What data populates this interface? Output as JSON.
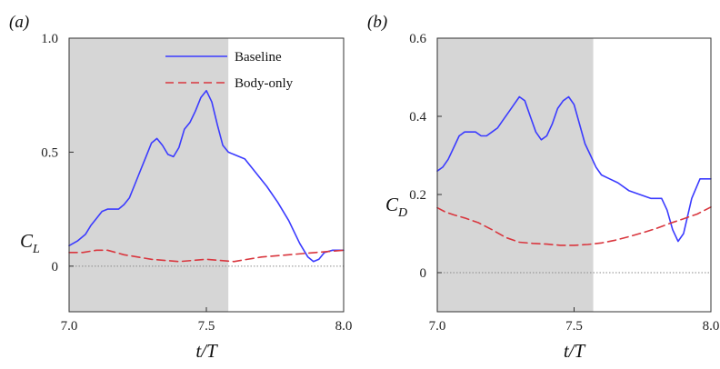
{
  "chart_data": [
    {
      "type": "line",
      "panel_label": "(a)",
      "ylabel_main": "C",
      "ylabel_sub": "L",
      "xlabel": "t/T",
      "xlim": [
        7.0,
        8.0
      ],
      "ylim": [
        -0.2,
        1.0
      ],
      "xticks": [
        "7.0",
        "7.5",
        "8.0"
      ],
      "yticks": [
        "0",
        "0.5",
        "1.0"
      ],
      "shaded_x": [
        7.0,
        7.58
      ],
      "shade_color": "#d6d6d6",
      "zero_line": true,
      "legend": {
        "placement": "top-right"
      },
      "series": [
        {
          "name": "Baseline",
          "color": "#3b3bff",
          "style": "solid",
          "x": [
            7.0,
            7.03,
            7.06,
            7.08,
            7.1,
            7.12,
            7.14,
            7.16,
            7.18,
            7.2,
            7.22,
            7.24,
            7.26,
            7.28,
            7.3,
            7.32,
            7.34,
            7.36,
            7.38,
            7.4,
            7.42,
            7.44,
            7.46,
            7.48,
            7.5,
            7.52,
            7.54,
            7.56,
            7.58,
            7.6,
            7.64,
            7.68,
            7.72,
            7.76,
            7.8,
            7.84,
            7.87,
            7.89,
            7.91,
            7.93,
            7.96,
            8.0
          ],
          "y": [
            0.09,
            0.11,
            0.14,
            0.18,
            0.21,
            0.24,
            0.25,
            0.25,
            0.25,
            0.27,
            0.3,
            0.36,
            0.42,
            0.48,
            0.54,
            0.56,
            0.53,
            0.49,
            0.48,
            0.52,
            0.6,
            0.63,
            0.68,
            0.74,
            0.77,
            0.72,
            0.62,
            0.53,
            0.5,
            0.49,
            0.47,
            0.41,
            0.35,
            0.28,
            0.2,
            0.1,
            0.04,
            0.02,
            0.03,
            0.06,
            0.07,
            0.07
          ]
        },
        {
          "name": "Body-only",
          "color": "#d9363e",
          "style": "dashed",
          "x": [
            7.0,
            7.05,
            7.1,
            7.14,
            7.2,
            7.3,
            7.4,
            7.5,
            7.6,
            7.7,
            7.8,
            7.9,
            8.0
          ],
          "y": [
            0.06,
            0.06,
            0.07,
            0.07,
            0.05,
            0.03,
            0.02,
            0.03,
            0.02,
            0.04,
            0.05,
            0.06,
            0.07
          ]
        }
      ]
    },
    {
      "type": "line",
      "panel_label": "(b)",
      "ylabel_main": "C",
      "ylabel_sub": "D",
      "xlabel": "t/T",
      "xlim": [
        7.0,
        8.0
      ],
      "ylim": [
        -0.1,
        0.6
      ],
      "xticks": [
        "7.0",
        "7.5",
        "8.0"
      ],
      "yticks": [
        "0",
        "0.2",
        "0.4",
        "0.6"
      ],
      "shaded_x": [
        7.0,
        7.57
      ],
      "shade_color": "#d6d6d6",
      "zero_line": true,
      "series": [
        {
          "name": "Baseline",
          "color": "#3b3bff",
          "style": "solid",
          "x": [
            7.0,
            7.02,
            7.04,
            7.06,
            7.08,
            7.1,
            7.12,
            7.14,
            7.16,
            7.18,
            7.2,
            7.22,
            7.24,
            7.26,
            7.28,
            7.3,
            7.32,
            7.34,
            7.36,
            7.38,
            7.4,
            7.42,
            7.44,
            7.46,
            7.48,
            7.5,
            7.52,
            7.54,
            7.56,
            7.58,
            7.6,
            7.63,
            7.66,
            7.7,
            7.74,
            7.78,
            7.8,
            7.82,
            7.84,
            7.86,
            7.88,
            7.9,
            7.93,
            7.96,
            8.0
          ],
          "y": [
            0.26,
            0.27,
            0.29,
            0.32,
            0.35,
            0.36,
            0.36,
            0.36,
            0.35,
            0.35,
            0.36,
            0.37,
            0.39,
            0.41,
            0.43,
            0.45,
            0.44,
            0.4,
            0.36,
            0.34,
            0.35,
            0.38,
            0.42,
            0.44,
            0.45,
            0.43,
            0.38,
            0.33,
            0.3,
            0.27,
            0.25,
            0.24,
            0.23,
            0.21,
            0.2,
            0.19,
            0.19,
            0.19,
            0.16,
            0.11,
            0.08,
            0.1,
            0.19,
            0.24,
            0.24
          ]
        },
        {
          "name": "Body-only",
          "color": "#d9363e",
          "style": "dashed",
          "x": [
            7.0,
            7.03,
            7.06,
            7.1,
            7.15,
            7.2,
            7.25,
            7.3,
            7.35,
            7.4,
            7.45,
            7.5,
            7.55,
            7.6,
            7.65,
            7.7,
            7.75,
            7.8,
            7.85,
            7.9,
            7.95,
            8.0
          ],
          "y": [
            0.166,
            0.155,
            0.148,
            0.14,
            0.128,
            0.11,
            0.09,
            0.078,
            0.075,
            0.073,
            0.07,
            0.07,
            0.072,
            0.076,
            0.083,
            0.092,
            0.102,
            0.113,
            0.126,
            0.138,
            0.15,
            0.168
          ]
        }
      ]
    }
  ]
}
